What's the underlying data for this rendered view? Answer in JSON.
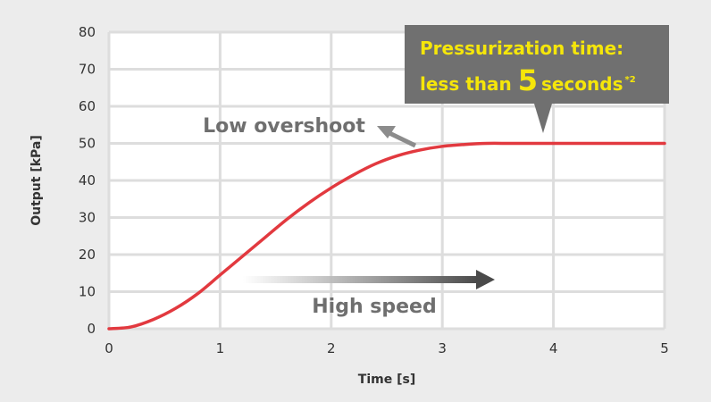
{
  "chart_data": {
    "type": "line",
    "xlabel": "Time [s]",
    "ylabel": "Output [kPa]",
    "xlim": [
      0,
      5
    ],
    "ylim": [
      0,
      80
    ],
    "x_ticks": [
      "0",
      "1",
      "2",
      "3",
      "4",
      "5"
    ],
    "y_ticks": [
      "0",
      "10",
      "20",
      "30",
      "40",
      "50",
      "60",
      "70",
      "80"
    ],
    "grid": true,
    "legend": "none",
    "series": [
      {
        "color": "#e2393f",
        "x": [
          0,
          0.2,
          0.4,
          0.6,
          0.8,
          1.0,
          1.2,
          1.4,
          1.6,
          1.8,
          2.0,
          2.2,
          2.4,
          2.6,
          2.8,
          3.0,
          3.2,
          3.4,
          3.6,
          3.8,
          4.0,
          4.5,
          5.0
        ],
        "y": [
          0,
          0.5,
          2.5,
          5.5,
          9.5,
          14.5,
          19.5,
          24.5,
          29.5,
          34,
          38,
          41.5,
          44.5,
          46.7,
          48.2,
          49.2,
          49.7,
          50,
          50,
          50,
          50,
          50,
          50
        ]
      }
    ],
    "annotations": {
      "low_overshoot": "Low overshoot",
      "high_speed": "High speed",
      "callout_line1": "Pressurization time:",
      "callout_line2_pre": "less than ",
      "callout_number": "5",
      "callout_line2_post": "seconds",
      "callout_footnote": "*2"
    },
    "colors": {
      "curve": "#e2393f",
      "callout_bg": "#707070",
      "callout_text": "#f5e60a",
      "annotation_text": "#6f6f6f",
      "grid": "#dddddd",
      "plot_bg": "#ffffff",
      "page_bg": "#ececec"
    }
  }
}
